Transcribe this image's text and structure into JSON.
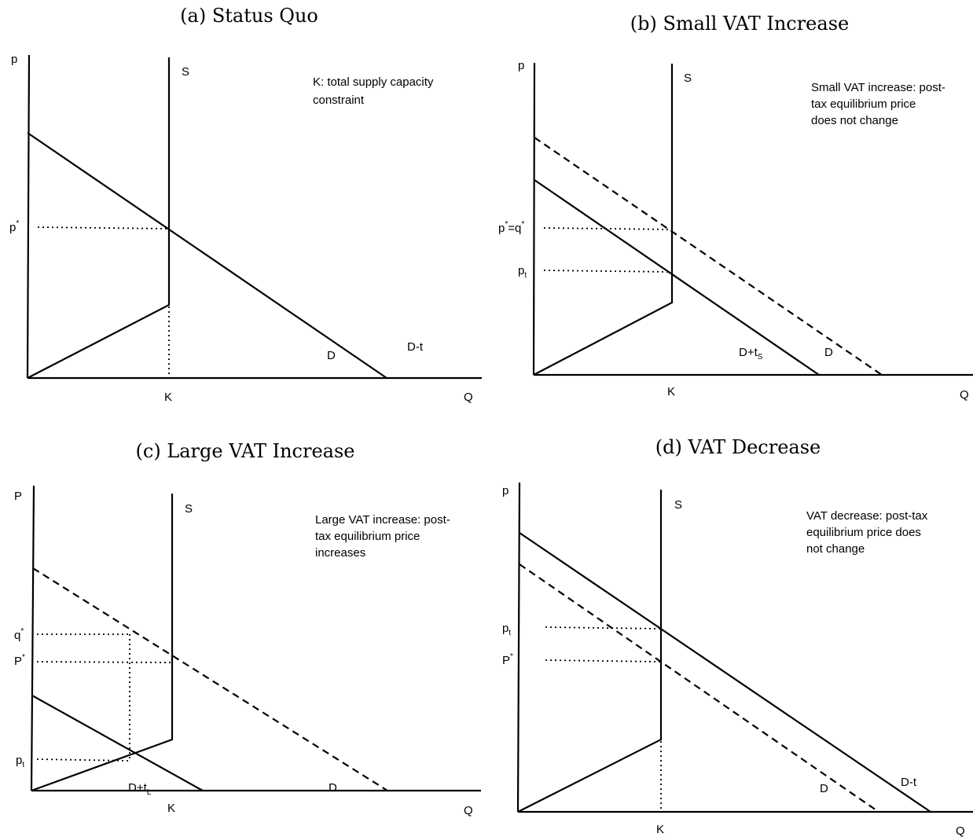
{
  "panels": {
    "a": {
      "title": "(a) Status Quo",
      "y_axis": "p",
      "x_axis": "Q",
      "supply": "S",
      "capacity": "K",
      "demand": "D",
      "shifted_demand": "D-t",
      "price_label": "p",
      "price_sup": "*",
      "note": [
        "K: total supply capacity",
        "constraint"
      ]
    },
    "b": {
      "title": "(b) Small VAT Increase",
      "y_axis": "p",
      "x_axis": "Q",
      "supply": "S",
      "capacity": "K",
      "demand": "D",
      "taxed_demand_main": "D+t",
      "taxed_demand_sub": "S",
      "price1_a": "p",
      "price1_sup1": "*",
      "price1_b": "=q",
      "price1_sup2": "*",
      "price2_main": "p",
      "price2_sub": "t",
      "note": [
        "Small VAT increase: post-",
        "tax equilibrium price",
        "does not change"
      ]
    },
    "c": {
      "title": "(c) Large VAT Increase",
      "y_axis": "P",
      "x_axis": "Q",
      "supply": "S",
      "capacity": "K",
      "demand": "D",
      "taxed_demand_main": "D+t",
      "taxed_demand_sub": "L",
      "price_q": "q",
      "price_q_sup": "*",
      "price_p": "P",
      "price_p_sup": "*",
      "price_t_main": "p",
      "price_t_sub": "t",
      "note": [
        "Large VAT increase: post-",
        "tax equilibrium price",
        "increases"
      ]
    },
    "d": {
      "title": "(d) VAT Decrease",
      "y_axis": "p",
      "x_axis": "Q",
      "supply": "S",
      "capacity": "K",
      "demand": "D",
      "shifted_demand": "D-t",
      "price_t_main": "p",
      "price_t_sub": "t",
      "price_p": "P",
      "price_p_sup": "*",
      "note": [
        "VAT decrease: post-tax",
        "equilibrium price does",
        "not change"
      ]
    }
  }
}
